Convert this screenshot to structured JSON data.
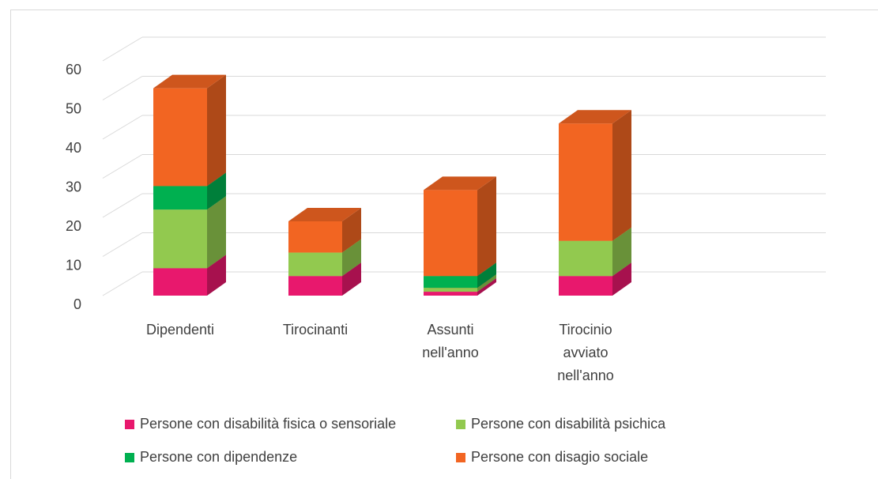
{
  "chart_data": {
    "type": "bar",
    "stacked": true,
    "three_d": true,
    "categories": [
      "Dipendenti",
      "Tirocinanti",
      "Assunti nell'anno",
      "Tirocinio avviato nell'anno"
    ],
    "series": [
      {
        "name": "Persone con disabilità fisica o sensoriale",
        "color": "#e8186d",
        "values": [
          7,
          5,
          1,
          5
        ]
      },
      {
        "name": "Persone con disabilità psichica",
        "color": "#92c94f",
        "values": [
          15,
          6,
          1,
          9
        ]
      },
      {
        "name": "Persone con dipendenze",
        "color": "#00b050",
        "values": [
          6,
          0,
          3,
          0
        ]
      },
      {
        "name": "Persone con disagio sociale",
        "color": "#f26522",
        "values": [
          25,
          8,
          22,
          30
        ]
      }
    ],
    "ylim": [
      0,
      60
    ],
    "yticks": [
      0,
      10,
      20,
      30,
      40,
      50,
      60
    ],
    "grid": true
  }
}
